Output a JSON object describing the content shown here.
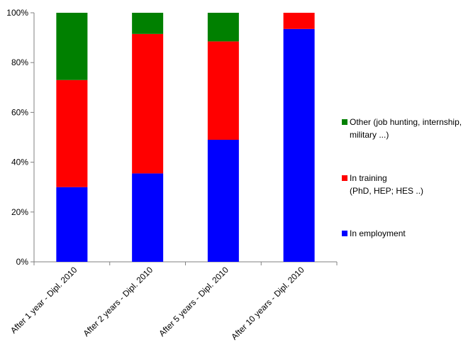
{
  "chart_data": {
    "type": "bar",
    "stacked": true,
    "categories": [
      "After 1 year - Dipl. 2010",
      "After 2 years - Dipl. 2010",
      "After 5 years - Dipl. 2010",
      "After 10 years - Dipl. 2010"
    ],
    "series": [
      {
        "name": "In employment",
        "color": "#0000ff",
        "values": [
          30,
          35.5,
          49,
          93.5
        ]
      },
      {
        "name": "In training\n(PhD, HEP; HES ..)",
        "color": "#ff0000",
        "values": [
          43,
          56,
          39.5,
          6.5
        ]
      },
      {
        "name": "Other (job hunting, internship,\nmilitary ...)",
        "color": "#008000",
        "values": [
          27,
          8.5,
          11.5,
          0
        ]
      }
    ],
    "ylim": [
      0,
      100
    ],
    "yticks": [
      "0%",
      "20%",
      "40%",
      "60%",
      "80%",
      "100%"
    ],
    "title": "",
    "xlabel": "",
    "ylabel": "",
    "grid": false,
    "legend_position": "right"
  }
}
